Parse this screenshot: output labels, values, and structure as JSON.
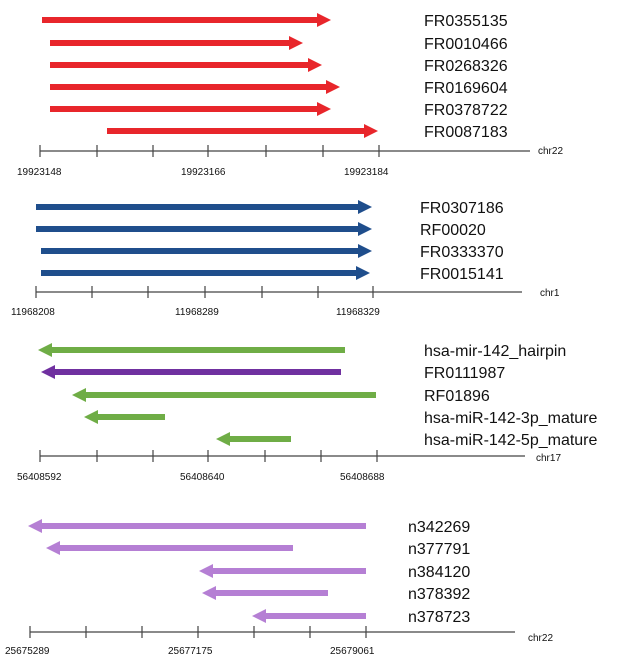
{
  "panels": [
    {
      "chromosome": "chr22",
      "color": "#e8262b",
      "tick_labels": [
        "19923148",
        "19923166",
        "19923184"
      ],
      "features": [
        {
          "name": "FR0355135",
          "direction": "forward"
        },
        {
          "name": "FR0010466",
          "direction": "forward"
        },
        {
          "name": "FR0268326",
          "direction": "forward"
        },
        {
          "name": "FR0169604",
          "direction": "forward"
        },
        {
          "name": "FR0378722",
          "direction": "forward"
        },
        {
          "name": "FR0087183",
          "direction": "forward"
        }
      ]
    },
    {
      "chromosome": "chr1",
      "color": "#1f4e8c",
      "tick_labels": [
        "11968208",
        "11968289",
        "11968329"
      ],
      "features": [
        {
          "name": "FR0307186",
          "direction": "forward"
        },
        {
          "name": "RF00020",
          "direction": "forward"
        },
        {
          "name": "FR0333370",
          "direction": "forward"
        },
        {
          "name": "FR0015141",
          "direction": "forward"
        }
      ]
    },
    {
      "chromosome": "chr17",
      "color": "#6fad46",
      "tick_labels": [
        "56408592",
        "56408640",
        "56408688"
      ],
      "features": [
        {
          "name": "hsa-mir-142_hairpin",
          "direction": "reverse",
          "color": "#6fad46"
        },
        {
          "name": "FR0111987",
          "direction": "reverse",
          "color": "#7030a0"
        },
        {
          "name": "RF01896",
          "direction": "reverse",
          "color": "#6fad46"
        },
        {
          "name": "hsa-miR-142-3p_mature",
          "direction": "reverse",
          "color": "#6fad46"
        },
        {
          "name": "hsa-miR-142-5p_mature",
          "direction": "reverse",
          "color": "#6fad46"
        }
      ]
    },
    {
      "chromosome": "chr22",
      "color": "#b57fd4",
      "tick_labels": [
        "25675289",
        "25677175",
        "25679061"
      ],
      "features": [
        {
          "name": "n342269",
          "direction": "reverse"
        },
        {
          "name": "n377791",
          "direction": "reverse"
        },
        {
          "name": "n384120",
          "direction": "reverse"
        },
        {
          "name": "n378392",
          "direction": "reverse"
        },
        {
          "name": "n378723",
          "direction": "reverse"
        }
      ]
    }
  ]
}
